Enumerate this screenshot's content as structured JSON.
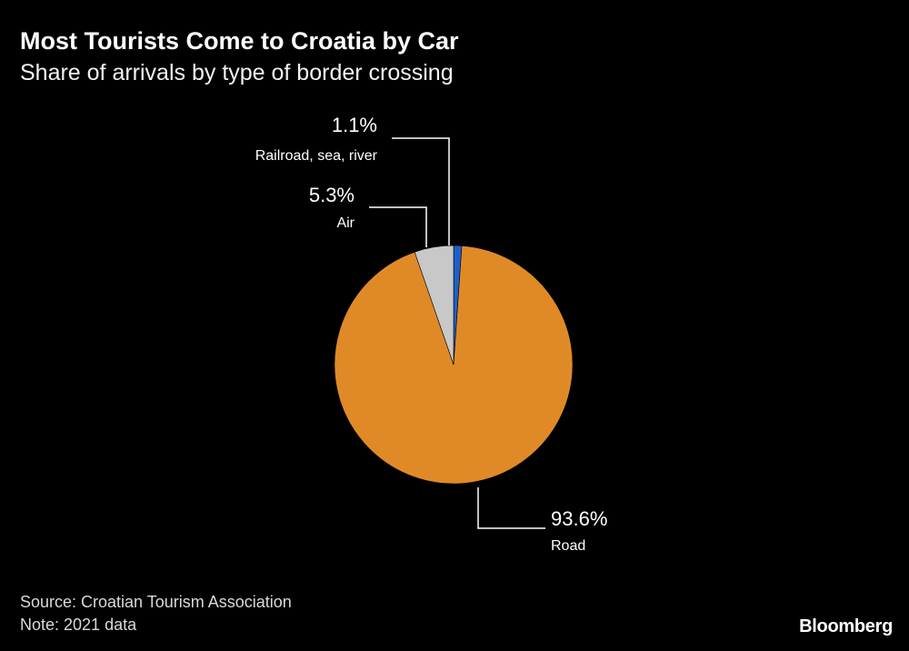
{
  "header": {
    "title": "Most Tourists Come to Croatia by Car",
    "subtitle": "Share of arrivals by type of border crossing"
  },
  "footer": {
    "source": "Source: Croatian Tourism Association",
    "note": "Note: 2021 data",
    "brand": "Bloomberg"
  },
  "chart_data": {
    "type": "pie",
    "title": "Most Tourists Come to Croatia by Car",
    "subtitle": "Share of arrivals by type of border crossing",
    "start_angle": "12 o'clock",
    "direction": "clockwise",
    "slices": [
      {
        "label": "Railroad, sea, river",
        "value": 1.1,
        "display": "1.1%",
        "color": "#1f5fc8"
      },
      {
        "label": "Road",
        "value": 93.6,
        "display": "93.6%",
        "color": "#e08a27"
      },
      {
        "label": "Air",
        "value": 5.3,
        "display": "5.3%",
        "color": "#c8c8c8"
      }
    ]
  }
}
